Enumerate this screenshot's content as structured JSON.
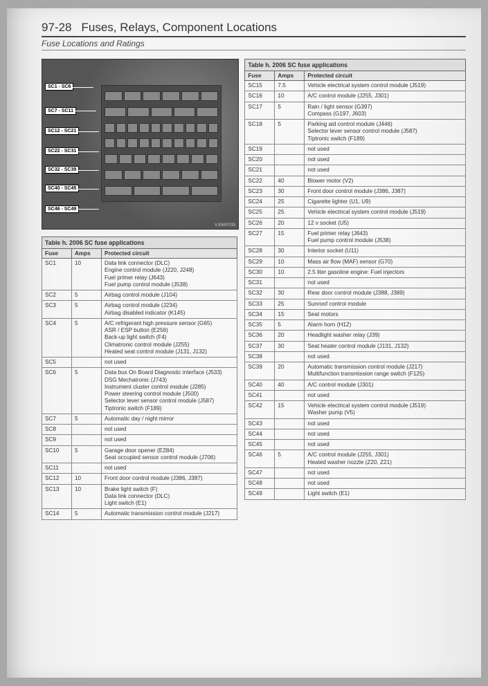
{
  "header": {
    "page_number": "97-28",
    "chapter_title": "Fuses, Relays, Component Locations",
    "subhead": "Fuse Locations and Ratings"
  },
  "photo": {
    "callouts": [
      {
        "label": "SC1 - SC6",
        "top_pct": 14
      },
      {
        "label": "SC7 - SC11",
        "top_pct": 28
      },
      {
        "label": "SC12 - SC21",
        "top_pct": 40
      },
      {
        "label": "SC22 - SC31",
        "top_pct": 52
      },
      {
        "label": "SC32 - SC39",
        "top_pct": 63
      },
      {
        "label": "SC40 - SC45",
        "top_pct": 74
      },
      {
        "label": "SC46 - SC49",
        "top_pct": 86
      }
    ],
    "fuse_rows": [
      6,
      5,
      10,
      10,
      8,
      6,
      4
    ],
    "credit": "VJ0697035"
  },
  "table": {
    "caption": "Table h. 2006 SC fuse applications",
    "columns": [
      "Fuse",
      "Amps",
      "Protected circuit"
    ]
  },
  "rows_left": [
    {
      "fuse": "SC1",
      "amps": "10",
      "circuit": "Data link connector (DLC)\nEngine control module (J220, J248)\nFuel primer relay (J643)\nFuel pump control module (J538)"
    },
    {
      "fuse": "SC2",
      "amps": "5",
      "circuit": "Airbag control module (J104)"
    },
    {
      "fuse": "SC3",
      "amps": "5",
      "circuit": "Airbag control module (J234)\nAirbag disabled indicator (K145)"
    },
    {
      "fuse": "SC4",
      "amps": "5",
      "circuit": "A/C refrigerant high pressure sensor (G65)\nASR / ESP button (E256)\nBack-up light switch (F4)\nClimatronic control module (J255)\nHeated seat control module (J131, J132)"
    },
    {
      "fuse": "SC5",
      "amps": "",
      "circuit": "not used"
    },
    {
      "fuse": "SC6",
      "amps": "5",
      "circuit": "Data bus On Board Diagnostic interface (J533)\nDSG Mechatronic (J743)\nInstrument cluster control module (J285)\nPower steering control module (J500)\nSelector lever sensor control module (J587)\nTiptronic switch (F189)"
    },
    {
      "fuse": "SC7",
      "amps": "5",
      "circuit": "Automatic day / night mirror"
    },
    {
      "fuse": "SC8",
      "amps": "",
      "circuit": "not used"
    },
    {
      "fuse": "SC9",
      "amps": "",
      "circuit": "not used"
    },
    {
      "fuse": "SC10",
      "amps": "5",
      "circuit": "Garage door opener (E284)\nSeat occupied sensor control module (J706)"
    },
    {
      "fuse": "SC11",
      "amps": "",
      "circuit": "not used"
    },
    {
      "fuse": "SC12",
      "amps": "10",
      "circuit": "Front door control module (J386, J387)"
    },
    {
      "fuse": "SC13",
      "amps": "10",
      "circuit": "Brake light switch (F)\nData link connector (DLC)\nLight switch (E1)"
    },
    {
      "fuse": "SC14",
      "amps": "5",
      "circuit": "Automatic transmission control module (J217)"
    }
  ],
  "rows_right": [
    {
      "fuse": "SC15",
      "amps": "7.5",
      "circuit": "Vehicle electrical system control module (J519)"
    },
    {
      "fuse": "SC16",
      "amps": "10",
      "circuit": "A/C control module (J255, J301)"
    },
    {
      "fuse": "SC17",
      "amps": "5",
      "circuit": "Rain / light sensor (G397)\nCompass (G197, J603)"
    },
    {
      "fuse": "SC18",
      "amps": "5",
      "circuit": "Parking aid control module (J446)\nSelector lever sensor control module (J587)\nTiptronic switch (F189)"
    },
    {
      "fuse": "SC19",
      "amps": "",
      "circuit": "not used"
    },
    {
      "fuse": "SC20",
      "amps": "",
      "circuit": "not used"
    },
    {
      "fuse": "SC21",
      "amps": "",
      "circuit": "not used"
    },
    {
      "fuse": "SC22",
      "amps": "40",
      "circuit": "Blower motor (V2)"
    },
    {
      "fuse": "SC23",
      "amps": "30",
      "circuit": "Front door control module (J386, J387)"
    },
    {
      "fuse": "SC24",
      "amps": "25",
      "circuit": "Cigarette lighter (U1, U9)"
    },
    {
      "fuse": "SC25",
      "amps": "25",
      "circuit": "Vehicle electrical system control module (J519)"
    },
    {
      "fuse": "SC26",
      "amps": "20",
      "circuit": "12 v socket (U5)"
    },
    {
      "fuse": "SC27",
      "amps": "15",
      "circuit": "Fuel primer relay (J643)\nFuel pump control module (J538)"
    },
    {
      "fuse": "SC28",
      "amps": "30",
      "circuit": "Interior socket (U11)"
    },
    {
      "fuse": "SC29",
      "amps": "10",
      "circuit": "Mass air flow (MAF) sensor (G70)"
    },
    {
      "fuse": "SC30",
      "amps": "10",
      "circuit": "2.5 liter gasoline engine: Fuel injectors"
    },
    {
      "fuse": "SC31",
      "amps": "",
      "circuit": "not used"
    },
    {
      "fuse": "SC32",
      "amps": "30",
      "circuit": "Rear door control module (J388, J389)"
    },
    {
      "fuse": "SC33",
      "amps": "25",
      "circuit": "Sunroof control module"
    },
    {
      "fuse": "SC34",
      "amps": "15",
      "circuit": "Seat motors"
    },
    {
      "fuse": "SC35",
      "amps": "5",
      "circuit": "Alarm horn (H12)"
    },
    {
      "fuse": "SC36",
      "amps": "20",
      "circuit": "Headlight washer relay (J39)"
    },
    {
      "fuse": "SC37",
      "amps": "30",
      "circuit": "Seat heater control module (J131, J132)"
    },
    {
      "fuse": "SC38",
      "amps": "",
      "circuit": "not used"
    },
    {
      "fuse": "SC39",
      "amps": "20",
      "circuit": "Automatic transmission control module (J217)\nMultifunction transmission range switch (F125)"
    },
    {
      "fuse": "SC40",
      "amps": "40",
      "circuit": "A/C control module (J301)"
    },
    {
      "fuse": "SC41",
      "amps": "",
      "circuit": "not used"
    },
    {
      "fuse": "SC42",
      "amps": "15",
      "circuit": "Vehicle electrical system control module (J519)\nWasher pump (V5)"
    },
    {
      "fuse": "SC43",
      "amps": "",
      "circuit": "not used"
    },
    {
      "fuse": "SC44",
      "amps": "",
      "circuit": "not used"
    },
    {
      "fuse": "SC45",
      "amps": "",
      "circuit": "not used"
    },
    {
      "fuse": "SC46",
      "amps": "5",
      "circuit": "A/C control module (J255, J301)\nHeated washer nozzle (Z20, Z21)"
    },
    {
      "fuse": "SC47",
      "amps": "",
      "circuit": "not used"
    },
    {
      "fuse": "SC48",
      "amps": "",
      "circuit": "not used"
    },
    {
      "fuse": "SC49",
      "amps": "",
      "circuit": "Light switch (E1)"
    }
  ],
  "colors": {
    "page_bg": "#f5f5f5",
    "border": "#666666",
    "text": "#333333"
  }
}
